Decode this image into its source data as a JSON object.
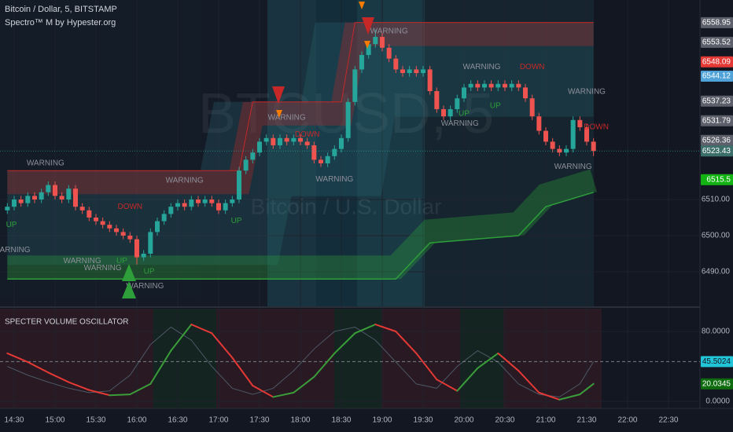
{
  "chart_data": [
    {
      "type": "candlestick",
      "title": "Bitcoin / Dollar, 5, BITSTAMP",
      "subtitle": "Spectro™ M by Hypester.org",
      "watermark": "BTCUSD, 5",
      "watermark_sub": "Bitcoin / U.S. Dollar",
      "up_color": "#26a69a",
      "down_color": "#ef5350",
      "x": [
        865,
        870,
        875,
        880,
        885,
        890,
        895,
        900,
        905,
        910,
        915,
        920,
        925,
        930,
        935,
        940,
        945,
        950,
        955,
        960,
        965,
        970,
        975,
        980,
        985,
        990,
        995,
        1000,
        1005,
        1010,
        1015,
        1020,
        1025,
        1030,
        1035,
        1040,
        1045,
        1050,
        1055,
        1060,
        1065,
        1070,
        1075,
        1080,
        1085,
        1090,
        1095,
        1100,
        1105,
        1110,
        1115,
        1120,
        1125,
        1130,
        1135,
        1140,
        1145,
        1150,
        1155,
        1160,
        1165,
        1170,
        1175,
        1180,
        1185,
        1190,
        1195,
        1200,
        1205,
        1210,
        1215,
        1220,
        1225,
        1230,
        1235,
        1240,
        1245,
        1250,
        1255,
        1260,
        1265,
        1270,
        1275,
        1280,
        1285,
        1290,
        1295
      ],
      "open": [
        6507,
        6508,
        6510,
        6509,
        6511,
        6510,
        6512,
        6514,
        6511,
        6510,
        6513,
        6508,
        6507,
        6505,
        6504,
        6503,
        6502,
        6501,
        6500,
        6499,
        6494,
        6495,
        6501,
        6504,
        6506,
        6508,
        6509,
        6508,
        6510,
        6509,
        6510,
        6509,
        6507,
        6509,
        6510,
        6518,
        6521,
        6523,
        6526,
        6527,
        6525,
        6527,
        6526,
        6527,
        6526,
        6525,
        6521,
        6520,
        6522,
        6524,
        6527,
        6537,
        6546,
        6550,
        6553,
        6555,
        6552,
        6549,
        6546,
        6545,
        6546,
        6545,
        6546,
        6540,
        6535,
        6533,
        6535,
        6538,
        6541,
        6542,
        6541,
        6542,
        6541,
        6542,
        6541,
        6542,
        6541,
        6538,
        6533,
        6529,
        6526,
        6524,
        6523,
        6524,
        6532,
        6530,
        6526
      ],
      "high": [
        6509,
        6511,
        6511,
        6512,
        6512,
        6513,
        6515,
        6515,
        6512,
        6514,
        6514,
        6509,
        6508,
        6506,
        6505,
        6504,
        6503,
        6502,
        6501,
        6500,
        6496,
        6502,
        6505,
        6507,
        6509,
        6510,
        6510,
        6511,
        6511,
        6511,
        6511,
        6510,
        6510,
        6511,
        6519,
        6522,
        6524,
        6527,
        6528,
        6528,
        6528,
        6528,
        6528,
        6528,
        6527,
        6526,
        6522,
        6523,
        6525,
        6528,
        6538,
        6547,
        6551,
        6554,
        6557,
        6556,
        6553,
        6550,
        6547,
        6547,
        6547,
        6547,
        6547,
        6541,
        6536,
        6536,
        6539,
        6542,
        6543,
        6543,
        6543,
        6543,
        6543,
        6543,
        6543,
        6543,
        6542,
        6539,
        6534,
        6530,
        6527,
        6525,
        6525,
        6533,
        6533,
        6531,
        6527
      ],
      "low": [
        6506,
        6507,
        6508,
        6508,
        6509,
        6509,
        6511,
        6510,
        6509,
        6509,
        6507,
        6506,
        6504,
        6503,
        6502,
        6501,
        6500,
        6499,
        6498,
        6492,
        6493,
        6494,
        6500,
        6503,
        6505,
        6507,
        6507,
        6507,
        6508,
        6508,
        6508,
        6506,
        6506,
        6508,
        6509,
        6517,
        6520,
        6522,
        6525,
        6524,
        6524,
        6525,
        6525,
        6525,
        6524,
        6520,
        6519,
        6519,
        6521,
        6523,
        6526,
        6536,
        6545,
        6549,
        6552,
        6551,
        6548,
        6545,
        6544,
        6544,
        6544,
        6544,
        6539,
        6534,
        6532,
        6532,
        6534,
        6537,
        6540,
        6540,
        6540,
        6540,
        6540,
        6540,
        6540,
        6540,
        6537,
        6532,
        6528,
        6525,
        6523,
        6522,
        6522,
        6523,
        6529,
        6525,
        6522
      ],
      "close": [
        6508,
        6510,
        6509,
        6511,
        6510,
        6512,
        6514,
        6511,
        6510,
        6513,
        6508,
        6507,
        6505,
        6504,
        6503,
        6502,
        6501,
        6500,
        6499,
        6494,
        6495,
        6501,
        6504,
        6506,
        6508,
        6509,
        6508,
        6510,
        6509,
        6510,
        6509,
        6507,
        6509,
        6510,
        6518,
        6521,
        6523,
        6526,
        6527,
        6525,
        6527,
        6526,
        6527,
        6526,
        6525,
        6521,
        6520,
        6522,
        6524,
        6527,
        6537,
        6546,
        6550,
        6553,
        6555,
        6552,
        6549,
        6546,
        6545,
        6546,
        6545,
        6546,
        6540,
        6535,
        6533,
        6535,
        6538,
        6541,
        6542,
        6541,
        6542,
        6541,
        6542,
        6541,
        6542,
        6541,
        6538,
        6533,
        6529,
        6526,
        6524,
        6523,
        6524,
        6532,
        6530,
        6526,
        6523.43
      ],
      "channel": {
        "x": [
          865,
          1035,
          1045,
          1110,
          1120,
          1150,
          1175,
          1240,
          1260,
          1295
        ],
        "upper": [
          6518,
          6518,
          6537,
          6537,
          6559,
          6559,
          6559,
          6559,
          6559,
          6559
        ],
        "lower": [
          6488,
          6488,
          6488,
          6488,
          6488,
          6488,
          6498,
          6500,
          6508,
          6512
        ],
        "upper_color": "#c62828",
        "lower_color": "#2e9e3a"
      },
      "annotations": [
        {
          "text": "WARNING",
          "x": 893,
          "y": 6520
        },
        {
          "text": "WARNING",
          "x": 995,
          "y": 6515.2
        },
        {
          "text": "DOWN",
          "x": 955,
          "y": 6508
        },
        {
          "text": "UP",
          "x": 868,
          "y": 6503
        },
        {
          "text": "WARNING",
          "x": 868,
          "y": 6496
        },
        {
          "text": "WARNING",
          "x": 920,
          "y": 6493
        },
        {
          "text": "WARNING",
          "x": 935,
          "y": 6491
        },
        {
          "text": "UP",
          "x": 949,
          "y": 6493
        },
        {
          "text": "UP",
          "x": 969,
          "y": 6490
        },
        {
          "text": "WARNING",
          "x": 966,
          "y": 6486
        },
        {
          "text": "UP",
          "x": 1033,
          "y": 6504
        },
        {
          "text": "WARNING",
          "x": 1070,
          "y": 6532.6
        },
        {
          "text": "DOWN",
          "x": 1085,
          "y": 6528
        },
        {
          "text": "WARNING",
          "x": 1105,
          "y": 6515.6
        },
        {
          "text": "WARNING",
          "x": 1145,
          "y": 6556.5
        },
        {
          "text": "WARNING",
          "x": 1213,
          "y": 6546.7
        },
        {
          "text": "DOWN",
          "x": 1250,
          "y": 6546.7
        },
        {
          "text": "UP",
          "x": 1223,
          "y": 6535.9
        },
        {
          "text": "UP",
          "x": 1200,
          "y": 6533.7
        },
        {
          "text": "WARNING",
          "x": 1197,
          "y": 6531
        },
        {
          "text": "WARNING",
          "x": 1290,
          "y": 6539.8
        },
        {
          "text": "WARNING",
          "x": 1280,
          "y": 6519
        },
        {
          "text": "DOWN",
          "x": 1297,
          "y": 6530
        }
      ],
      "price_labels": [
        {
          "value": 6558.95,
          "color": "#5d606b"
        },
        {
          "value": 6553.52,
          "color": "#5d606b"
        },
        {
          "value": 6548.09,
          "color": "#e53935"
        },
        {
          "value": 6544.12,
          "color": "#4fa3d8"
        },
        {
          "value": 6537.23,
          "color": "#5d606b"
        },
        {
          "value": 6531.79,
          "color": "#5d606b"
        },
        {
          "value": 6526.36,
          "color": "#5d606b"
        },
        {
          "value": 6523.43,
          "color": "#3c6e6a"
        },
        {
          "value": 6515.5,
          "color": "#12b312"
        }
      ],
      "xlim": [
        859.62,
        1373.08
      ],
      "ylim": [
        6480.43,
        6565.22
      ],
      "yticks": [
        {
          "value": 6490,
          "label": "6490.00"
        },
        {
          "value": 6500,
          "label": "6500.00"
        },
        {
          "value": 6510,
          "label": "6510.00"
        }
      ],
      "grid": true
    },
    {
      "type": "line",
      "title": "SPECTER VOLUME OSCILLATOR",
      "x": [
        865,
        880,
        895,
        910,
        925,
        940,
        955,
        970,
        985,
        1000,
        1015,
        1030,
        1045,
        1060,
        1075,
        1090,
        1105,
        1120,
        1135,
        1150,
        1165,
        1180,
        1195,
        1210,
        1225,
        1240,
        1255,
        1270,
        1285,
        1295
      ],
      "series": [
        {
          "color": "#e53935",
          "rising_color": "#3a9d3a",
          "values": [
            55,
            45,
            33,
            22,
            13,
            7,
            8,
            20,
            58,
            88,
            78,
            50,
            18,
            5,
            10,
            28,
            55,
            78,
            88,
            80,
            55,
            25,
            12,
            38,
            55,
            35,
            10,
            2,
            8,
            20.0345
          ]
        },
        {
          "color": "#4c5866",
          "values": [
            40,
            30,
            22,
            15,
            10,
            12,
            30,
            65,
            85,
            70,
            40,
            15,
            8,
            15,
            35,
            60,
            80,
            85,
            70,
            45,
            20,
            15,
            40,
            58,
            45,
            20,
            8,
            5,
            20,
            45.5024
          ]
        }
      ],
      "tag_colors": [
        "#0e6b0e",
        "#22c4d8"
      ],
      "xlim": [
        859.62,
        1373.08
      ],
      "ylim": [
        -8.09,
        106.07
      ],
      "yticks": [
        {
          "value": 80,
          "label": "80.0000"
        },
        {
          "value": 0,
          "label": "0.0000"
        }
      ],
      "xticks": [
        {
          "value": 870,
          "label": "14:30"
        },
        {
          "value": 900,
          "label": "15:00"
        },
        {
          "value": 930,
          "label": "15:30"
        },
        {
          "value": 960,
          "label": "16:00"
        },
        {
          "value": 990,
          "label": "16:30"
        },
        {
          "value": 1020,
          "label": "17:00"
        },
        {
          "value": 1050,
          "label": "17:30"
        },
        {
          "value": 1080,
          "label": "18:00"
        },
        {
          "value": 1110,
          "label": "18:30"
        },
        {
          "value": 1140,
          "label": "19:00"
        },
        {
          "value": 1170,
          "label": "19:30"
        },
        {
          "value": 1200,
          "label": "20:00"
        },
        {
          "value": 1230,
          "label": "20:30"
        },
        {
          "value": 1260,
          "label": "21:00"
        },
        {
          "value": 1290,
          "label": "21:30"
        },
        {
          "value": 1320,
          "label": "22:00"
        },
        {
          "value": 1350,
          "label": "22:30"
        }
      ],
      "grid": true
    }
  ]
}
